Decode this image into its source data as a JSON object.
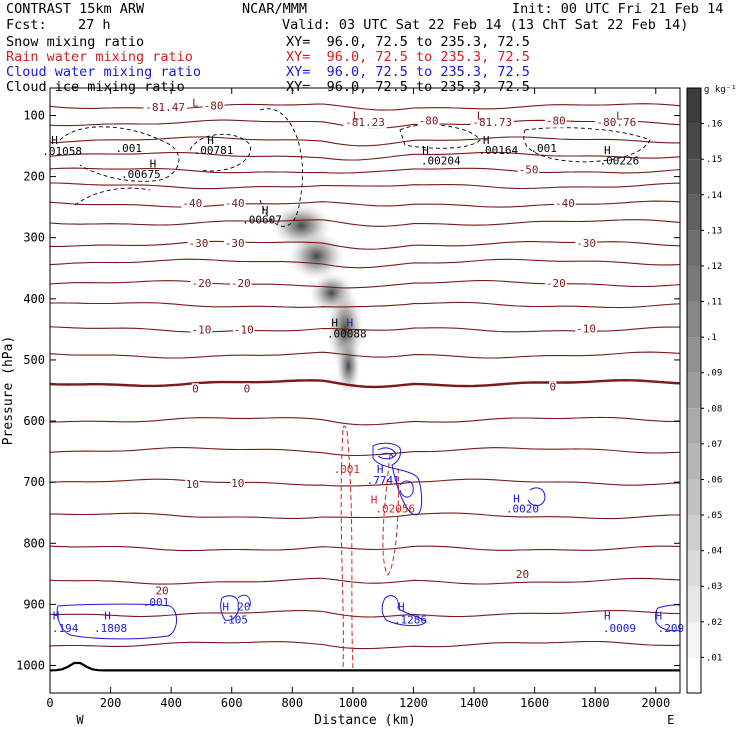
{
  "header": {
    "run": "CONTRAST 15km ARW",
    "center": "NCAR/MMM",
    "init": "Init: 00 UTC Fri 21 Feb 14",
    "fcst_label": "Fcst:",
    "fcst_value": "27 h",
    "valid": "Valid: 03 UTC Sat 22 Feb 14 (13 ChT Sat 22 Feb 14)",
    "fields": [
      {
        "name": "Snow mixing ratio",
        "xy": "XY=  96.0, 72.5 to 235.3, 72.5",
        "color": "#000000"
      },
      {
        "name": "Rain water mixing ratio",
        "xy": "XY=  96.0, 72.5 to 235.3, 72.5",
        "color": "#d42020"
      },
      {
        "name": "Cloud water mixing ratio",
        "xy": "XY=  96.0, 72.5 to 235.3, 72.5",
        "color": "#1a1ad8"
      },
      {
        "name": "Cloud ice mixing ratio",
        "xy": "XY=  96.0, 72.5 to 235.3, 72.5",
        "color": "#000000"
      }
    ]
  },
  "colorbar": {
    "unit": "g kg⁻¹",
    "ticks": [
      ".01",
      ".02",
      ".03",
      ".04",
      ".05",
      ".06",
      ".07",
      ".08",
      ".09",
      ".1",
      ".11",
      ".12",
      ".13",
      ".14",
      ".15",
      ".16"
    ]
  },
  "chart_data": {
    "type": "contour",
    "xlabel": "Distance (km)",
    "ylabel": "Pressure (hPa)",
    "xlim": [
      0,
      2080
    ],
    "ylim": [
      1045,
      55
    ],
    "x_ticks": [
      0,
      200,
      400,
      600,
      800,
      1000,
      1200,
      1400,
      1600,
      1800,
      2000
    ],
    "y_ticks": [
      100,
      200,
      300,
      400,
      500,
      600,
      700,
      800,
      900,
      1000
    ],
    "x_end_labels": {
      "left": "W",
      "right": "E"
    },
    "temperature_contours": [
      {
        "level": "-80",
        "p": 85
      },
      {
        "level": "",
        "p": 112
      },
      {
        "level": "",
        "p": 140
      },
      {
        "level": "",
        "p": 165
      },
      {
        "level": "-50",
        "p": 190
      },
      {
        "level": "",
        "p": 215
      },
      {
        "level": "-40",
        "p": 245
      },
      {
        "level": "",
        "p": 275
      },
      {
        "level": "-30",
        "p": 310
      },
      {
        "level": "",
        "p": 340
      },
      {
        "level": "-20",
        "p": 375
      },
      {
        "level": "",
        "p": 410
      },
      {
        "level": "-10",
        "p": 450
      },
      {
        "level": "",
        "p": 492
      },
      {
        "level": "0",
        "p": 538
      },
      {
        "level": "",
        "p": 598
      },
      {
        "level": "",
        "p": 648
      },
      {
        "level": "10",
        "p": 700
      },
      {
        "level": "",
        "p": 755
      },
      {
        "level": "",
        "p": 808
      },
      {
        "level": "20",
        "p": 862
      },
      {
        "level": "",
        "p": 915
      },
      {
        "level": "",
        "p": 965
      }
    ],
    "temperature_labels": [
      {
        "x": 380,
        "p": 88,
        "text": "-81.47"
      },
      {
        "x": 540,
        "p": 85,
        "text": "-80"
      },
      {
        "x": 1040,
        "p": 112,
        "text": "-81.23"
      },
      {
        "x": 1250,
        "p": 110,
        "text": "-80"
      },
      {
        "x": 1460,
        "p": 112,
        "text": "-81.73"
      },
      {
        "x": 1670,
        "p": 110,
        "text": "-80"
      },
      {
        "x": 1870,
        "p": 112,
        "text": "-80.76"
      },
      {
        "x": 1580,
        "p": 190,
        "text": "-50"
      },
      {
        "x": 470,
        "p": 245,
        "text": "-40"
      },
      {
        "x": 610,
        "p": 245,
        "text": "-40"
      },
      {
        "x": 1700,
        "p": 245,
        "text": "-40"
      },
      {
        "x": 490,
        "p": 310,
        "text": "-30"
      },
      {
        "x": 610,
        "p": 310,
        "text": "-30"
      },
      {
        "x": 1770,
        "p": 310,
        "text": "-30"
      },
      {
        "x": 500,
        "p": 376,
        "text": "-20"
      },
      {
        "x": 630,
        "p": 376,
        "text": "-20"
      },
      {
        "x": 1670,
        "p": 376,
        "text": "-20"
      },
      {
        "x": 500,
        "p": 452,
        "text": "-10"
      },
      {
        "x": 640,
        "p": 452,
        "text": "-10"
      },
      {
        "x": 1770,
        "p": 450,
        "text": "-10"
      },
      {
        "x": 480,
        "p": 548,
        "text": "0"
      },
      {
        "x": 650,
        "p": 548,
        "text": "0"
      },
      {
        "x": 1660,
        "p": 545,
        "text": "0"
      },
      {
        "x": 470,
        "p": 705,
        "text": "10"
      },
      {
        "x": 620,
        "p": 703,
        "text": "10"
      },
      {
        "x": 1560,
        "p": 852,
        "text": "20"
      },
      {
        "x": 370,
        "p": 879,
        "text": "20"
      }
    ],
    "highs_lows": [
      {
        "x": 480,
        "p": 80,
        "text": "L",
        "color": "#7a1a1a"
      },
      {
        "x": 1010,
        "p": 102,
        "text": "L",
        "color": "#7a1a1a"
      },
      {
        "x": 1420,
        "p": 102,
        "text": "L",
        "color": "#7a1a1a"
      },
      {
        "x": 1880,
        "p": 102,
        "text": "L",
        "color": "#7a1a1a"
      },
      {
        "x": 15,
        "p": 142,
        "text": "H",
        "color": "#000000"
      },
      {
        "x": 530,
        "p": 142,
        "text": "H",
        "color": "#000000"
      },
      {
        "x": 1240,
        "p": 158,
        "text": "H",
        "color": "#000000"
      },
      {
        "x": 1440,
        "p": 142,
        "text": "H",
        "color": "#000000"
      },
      {
        "x": 1840,
        "p": 158,
        "text": "H",
        "color": "#000000"
      },
      {
        "x": 340,
        "p": 180,
        "text": "H",
        "color": "#000000"
      },
      {
        "x": 710,
        "p": 256,
        "text": "H",
        "color": "#000000"
      },
      {
        "x": 940,
        "p": 440,
        "text": "H",
        "color": "#000000"
      },
      {
        "x": 990,
        "p": 440,
        "text": "H",
        "color": "#1a1ad8"
      },
      {
        "x": 1090,
        "p": 680,
        "text": "H",
        "color": "#1a1ad8"
      },
      {
        "x": 1070,
        "p": 730,
        "text": "H",
        "color": "#d42020"
      },
      {
        "x": 1540,
        "p": 728,
        "text": "H",
        "color": "#1a1ad8"
      },
      {
        "x": 20,
        "p": 920,
        "text": "H",
        "color": "#1a1ad8"
      },
      {
        "x": 190,
        "p": 920,
        "text": "H",
        "color": "#1a1ad8"
      },
      {
        "x": 580,
        "p": 905,
        "text": "H",
        "color": "#1a1ad8"
      },
      {
        "x": 1160,
        "p": 905,
        "text": "H",
        "color": "#1a1ad8"
      },
      {
        "x": 1840,
        "p": 920,
        "text": "H",
        "color": "#1a1ad8"
      },
      {
        "x": 2010,
        "p": 920,
        "text": "H",
        "color": "#1a1ad8"
      }
    ],
    "value_labels": [
      {
        "x": 40,
        "p": 160,
        "text": ".01058",
        "color": "#000000"
      },
      {
        "x": 540,
        "p": 158,
        "text": ".00781",
        "color": "#000000"
      },
      {
        "x": 260,
        "p": 155,
        "text": ".001",
        "color": "#000000"
      },
      {
        "x": 1290,
        "p": 175,
        "text": ".00204",
        "color": "#000000"
      },
      {
        "x": 1480,
        "p": 158,
        "text": ".00164",
        "color": "#000000"
      },
      {
        "x": 1630,
        "p": 155,
        "text": ".001",
        "color": "#000000"
      },
      {
        "x": 1880,
        "p": 175,
        "text": ".00226",
        "color": "#000000"
      },
      {
        "x": 300,
        "p": 197,
        "text": ".00675",
        "color": "#000000"
      },
      {
        "x": 700,
        "p": 272,
        "text": ".00607",
        "color": "#000000"
      },
      {
        "x": 980,
        "p": 458,
        "text": ".00088",
        "color": "#000000"
      },
      {
        "x": 1100,
        "p": 698,
        "text": ".7741",
        "color": "#1a1ad8"
      },
      {
        "x": 1140,
        "p": 745,
        "text": ".02056",
        "color": "#d42020"
      },
      {
        "x": 980,
        "p": 680,
        "text": ".001",
        "color": "#d42020"
      },
      {
        "x": 1560,
        "p": 745,
        "text": ".0020",
        "color": "#1a1ad8"
      },
      {
        "x": 350,
        "p": 898,
        "text": ".001",
        "color": "#1a1ad8"
      },
      {
        "x": 50,
        "p": 940,
        "text": ".194",
        "color": "#1a1ad8"
      },
      {
        "x": 200,
        "p": 940,
        "text": ".1808",
        "color": "#1a1ad8"
      },
      {
        "x": 610,
        "p": 926,
        "text": ".105",
        "color": "#1a1ad8"
      },
      {
        "x": 640,
        "p": 905,
        "text": "20",
        "color": "#1a1ad8"
      },
      {
        "x": 1190,
        "p": 926,
        "text": ".1286",
        "color": "#1a1ad8"
      },
      {
        "x": 1880,
        "p": 940,
        "text": ".0009",
        "color": "#1a1ad8"
      },
      {
        "x": 2050,
        "p": 940,
        "text": ".209",
        "color": "#1a1ad8"
      }
    ]
  }
}
